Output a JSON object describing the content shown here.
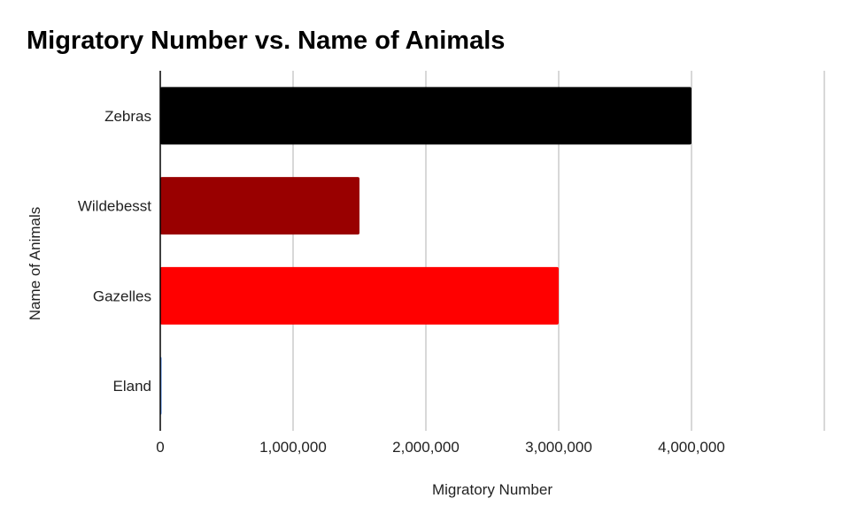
{
  "chart_data": {
    "type": "bar",
    "orientation": "horizontal",
    "title": "Migratory Number vs. Name of Animals",
    "xlabel": "Migratory Number",
    "ylabel": "Name of Animals",
    "categories": [
      "Zebras",
      "Wildebesst",
      "Gazelles",
      "Eland"
    ],
    "values": [
      4000000,
      1500000,
      3000000,
      10000
    ],
    "colors": [
      "#000000",
      "#990000",
      "#ff0000",
      "#4a86e8"
    ],
    "xlim": [
      0,
      5000000
    ],
    "xticks": [
      0,
      1000000,
      2000000,
      3000000,
      4000000
    ],
    "xtick_labels": [
      "0",
      "1,000,000",
      "2,000,000",
      "3,000,000",
      "4,000,000"
    ],
    "grid": "vertical",
    "legend": "none"
  }
}
